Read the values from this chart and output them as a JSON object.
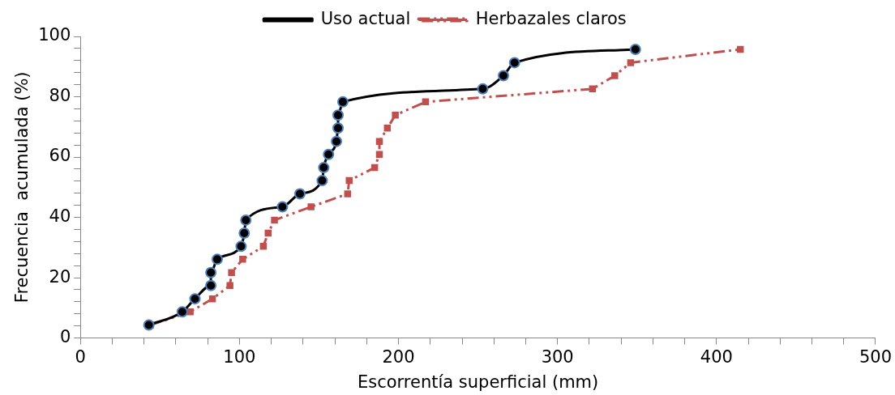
{
  "chart_data": {
    "type": "line",
    "xlabel": "Escorrentía superficial (mm)",
    "ylabel": "Frecuencia  acumulada (%)",
    "xlim": [
      0,
      500
    ],
    "ylim": [
      0,
      100
    ],
    "xticks": [
      0,
      {
        "value": 20,
        "label": null
      },
      {
        "value": 40,
        "label": null
      },
      {
        "value": 60,
        "label": null
      },
      {
        "value": 80,
        "label": null
      },
      100,
      {
        "value": 120,
        "label": null
      },
      {
        "value": 140,
        "label": null
      },
      {
        "value": 160,
        "label": null
      },
      {
        "value": 180,
        "label": null
      },
      200,
      {
        "value": 220,
        "label": null
      },
      {
        "value": 240,
        "label": null
      },
      {
        "value": 260,
        "label": null
      },
      {
        "value": 280,
        "label": null
      },
      300,
      {
        "value": 320,
        "label": null
      },
      {
        "value": 340,
        "label": null
      },
      {
        "value": 360,
        "label": null
      },
      {
        "value": 380,
        "label": null
      },
      400,
      {
        "value": 420,
        "label": null
      },
      {
        "value": 440,
        "label": null
      },
      {
        "value": 460,
        "label": null
      },
      {
        "value": 480,
        "label": null
      },
      500
    ],
    "yticks": [
      0,
      {
        "value": 4,
        "label": null
      },
      {
        "value": 8,
        "label": null
      },
      {
        "value": 12,
        "label": null
      },
      {
        "value": 16,
        "label": null
      },
      20,
      {
        "value": 24,
        "label": null
      },
      {
        "value": 28,
        "label": null
      },
      {
        "value": 32,
        "label": null
      },
      {
        "value": 36,
        "label": null
      },
      40,
      {
        "value": 44,
        "label": null
      },
      {
        "value": 48,
        "label": null
      },
      {
        "value": 52,
        "label": null
      },
      {
        "value": 56,
        "label": null
      },
      60,
      {
        "value": 64,
        "label": null
      },
      {
        "value": 68,
        "label": null
      },
      {
        "value": 72,
        "label": null
      },
      {
        "value": 76,
        "label": null
      },
      80,
      {
        "value": 84,
        "label": null
      },
      {
        "value": 88,
        "label": null
      },
      {
        "value": 92,
        "label": null
      },
      {
        "value": 96,
        "label": null
      },
      100
    ],
    "grid": false,
    "legend": "top",
    "series": [
      {
        "name": "Uso actual",
        "color": "#000000",
        "marker": "circle",
        "line_style": "solid",
        "x": [
          43,
          64,
          72,
          82,
          82,
          86,
          101,
          103,
          104,
          127,
          138,
          152,
          153,
          156,
          161,
          162,
          162,
          165,
          253,
          266,
          273,
          349
        ],
        "values": [
          4.3,
          8.7,
          13,
          17.4,
          21.7,
          26.1,
          30.4,
          34.8,
          39.1,
          43.5,
          47.8,
          52.2,
          56.5,
          60.9,
          65.2,
          69.6,
          73.9,
          78.3,
          82.6,
          87,
          91.3,
          95.7
        ]
      },
      {
        "name": "Herbazales claros",
        "color": "#c0504d",
        "marker": "square",
        "line_style": "dashed",
        "x": [
          44,
          69,
          83,
          94,
          95,
          102,
          115,
          118,
          122,
          145,
          168,
          169,
          185,
          188,
          188,
          193,
          198,
          217,
          322,
          336,
          346,
          415
        ],
        "values": [
          4.3,
          8.7,
          13,
          17.4,
          21.7,
          26.1,
          30.4,
          34.8,
          39.1,
          43.5,
          47.8,
          52.2,
          56.5,
          60.9,
          65.2,
          69.6,
          73.9,
          78.3,
          82.6,
          87,
          91.3,
          95.7
        ]
      }
    ]
  }
}
